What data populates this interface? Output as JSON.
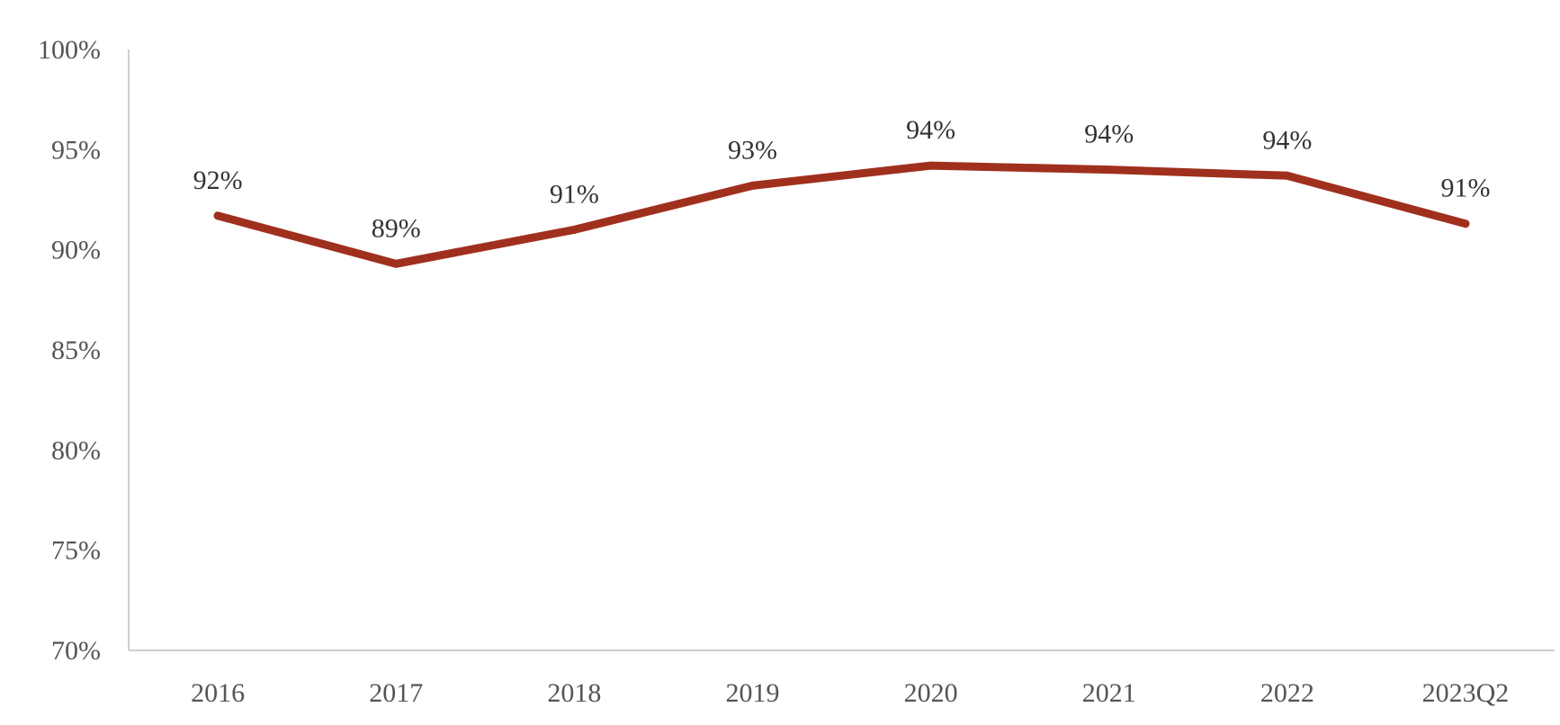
{
  "chart_data": {
    "type": "line",
    "categories": [
      "2016",
      "2017",
      "2018",
      "2019",
      "2020",
      "2021",
      "2022",
      "2023Q2"
    ],
    "series": [
      {
        "values": [
          91.7,
          89.3,
          91.0,
          93.2,
          94.2,
          94.0,
          93.7,
          91.3
        ],
        "data_labels": [
          "92%",
          "89%",
          "91%",
          "93%",
          "94%",
          "94%",
          "94%",
          "91%"
        ]
      }
    ],
    "ylim": [
      70,
      100
    ],
    "yticks": [
      70,
      75,
      80,
      85,
      90,
      95,
      100
    ],
    "ytick_labels": [
      "70%",
      "75%",
      "80%",
      "85%",
      "90%",
      "95%",
      "100%"
    ],
    "grid": false,
    "line_color": "#A0301E"
  }
}
